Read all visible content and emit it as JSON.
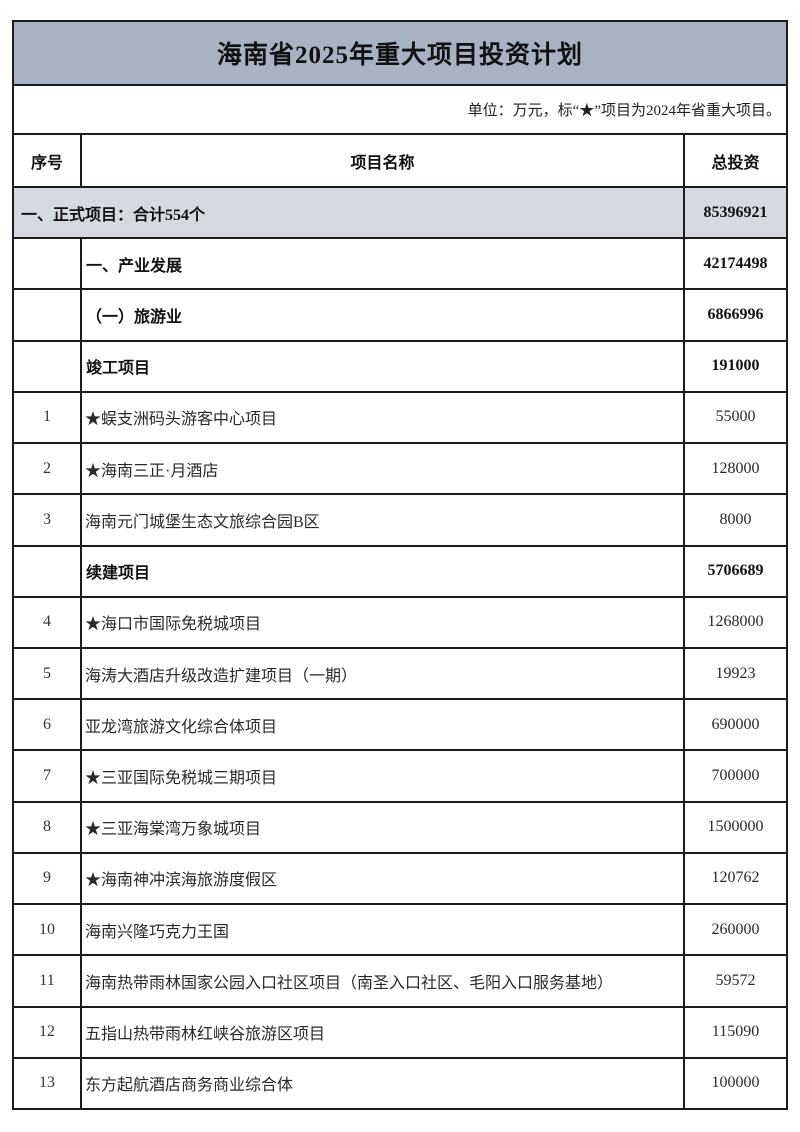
{
  "title": "海南省2025年重大项目投资计划",
  "note": "单位：万元，标“★”项目为2024年省重大项目。",
  "columns": {
    "seq": "序号",
    "name": "项目名称",
    "investment": "总投资"
  },
  "colors": {
    "title_bg": "#a9b2c2",
    "section_row_bg": "#d5d9e0",
    "border": "#1b1b1b"
  },
  "rows": [
    {
      "type": "section",
      "seq": "",
      "name": "一、正式项目：合计554个",
      "investment": "85396921"
    },
    {
      "type": "group",
      "seq": "",
      "name": "一、产业发展",
      "investment": "42174498"
    },
    {
      "type": "group",
      "seq": "",
      "name": "（一）旅游业",
      "investment": "6866996"
    },
    {
      "type": "group",
      "seq": "",
      "name": "竣工项目",
      "investment": "191000"
    },
    {
      "type": "item",
      "seq": "1",
      "name": "★蜈支洲码头游客中心项目",
      "investment": "55000"
    },
    {
      "type": "item",
      "seq": "2",
      "name": "★海南三正·月酒店",
      "investment": "128000"
    },
    {
      "type": "item",
      "seq": "3",
      "name": "海南元门城堡生态文旅综合园B区",
      "investment": "8000"
    },
    {
      "type": "group",
      "seq": "",
      "name": "续建项目",
      "investment": "5706689"
    },
    {
      "type": "item",
      "seq": "4",
      "name": "★海口市国际免税城项目",
      "investment": "1268000"
    },
    {
      "type": "item",
      "seq": "5",
      "name": "海涛大酒店升级改造扩建项目（一期）",
      "investment": "19923"
    },
    {
      "type": "item",
      "seq": "6",
      "name": "亚龙湾旅游文化综合体项目",
      "investment": "690000"
    },
    {
      "type": "item",
      "seq": "7",
      "name": "★三亚国际免税城三期项目",
      "investment": "700000"
    },
    {
      "type": "item",
      "seq": "8",
      "name": "★三亚海棠湾万象城项目",
      "investment": "1500000"
    },
    {
      "type": "item",
      "seq": "9",
      "name": "★海南神冲滨海旅游度假区",
      "investment": "120762"
    },
    {
      "type": "item",
      "seq": "10",
      "name": "海南兴隆巧克力王国",
      "investment": "260000"
    },
    {
      "type": "item",
      "seq": "11",
      "name": "海南热带雨林国家公园入口社区项目（南圣入口社区、毛阳入口服务基地）",
      "investment": "59572"
    },
    {
      "type": "item",
      "seq": "12",
      "name": "五指山热带雨林红峡谷旅游区项目",
      "investment": "115090"
    },
    {
      "type": "item",
      "seq": "13",
      "name": "东方起航酒店商务商业综合体",
      "investment": "100000"
    }
  ]
}
